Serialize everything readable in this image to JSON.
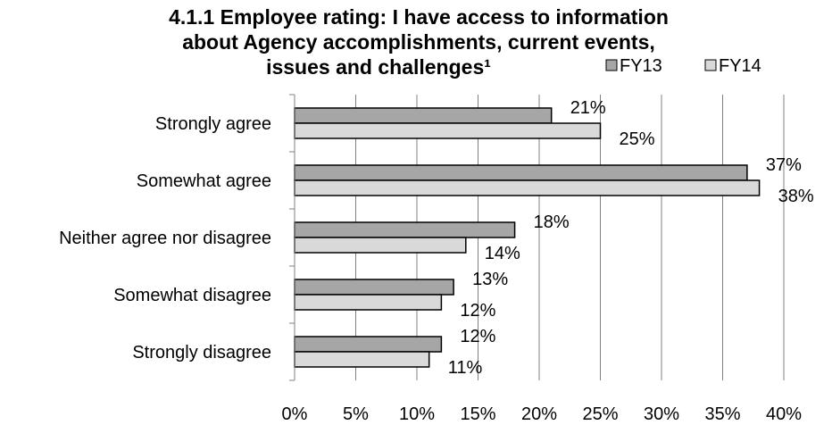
{
  "chart_data": {
    "type": "bar",
    "orientation": "horizontal",
    "title": "4.1.1 Employee rating: I have access to information about Agency accomplishments, current events, issues and challenges¹",
    "title_lines": [
      "4.1.1 Employee rating: I have access to information",
      "about Agency accomplishments, current events,",
      "issues and challenges¹"
    ],
    "categories": [
      "Strongly agree",
      "Somewhat agree",
      "Neither agree nor disagree",
      "Somewhat disagree",
      "Strongly disagree"
    ],
    "series": [
      {
        "name": "FY13",
        "color": "#a6a6a6",
        "values": [
          21,
          37,
          18,
          13,
          12
        ],
        "labels": [
          "21%",
          "37%",
          "18%",
          "13%",
          "12%"
        ]
      },
      {
        "name": "FY14",
        "color": "#d9d9d9",
        "values": [
          25,
          38,
          14,
          12,
          11
        ],
        "labels": [
          "25%",
          "38%",
          "14%",
          "12%",
          "11%"
        ]
      }
    ],
    "xlim": [
      0,
      40
    ],
    "x_ticks": [
      "0%",
      "5%",
      "10%",
      "15%",
      "20%",
      "25%",
      "30%",
      "35%",
      "40%"
    ],
    "xlabel": "",
    "ylabel": "",
    "grid": true,
    "legend_position": "top-right"
  }
}
